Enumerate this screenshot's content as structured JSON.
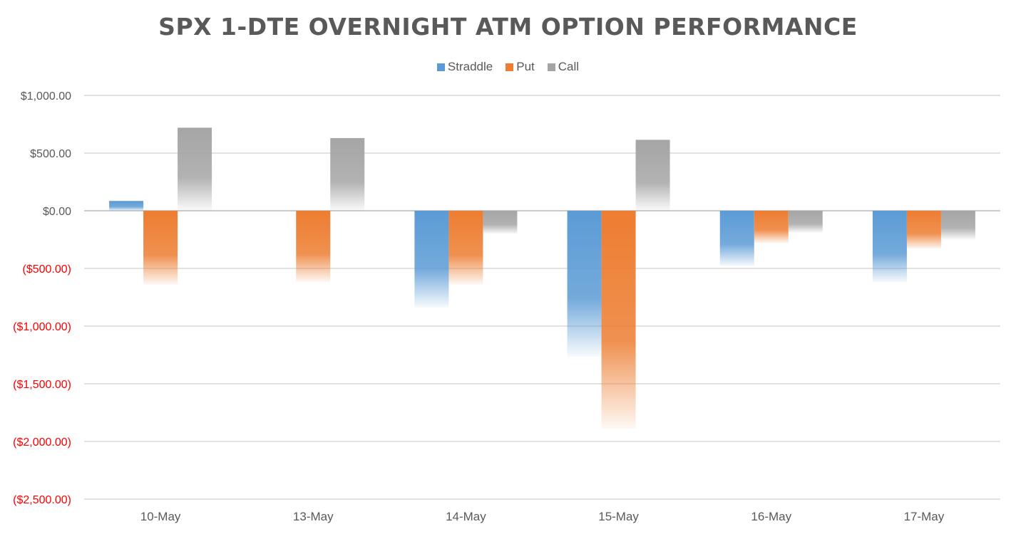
{
  "chart_data": {
    "type": "bar",
    "title": "SPX 1-DTE OVERNIGHT ATM OPTION PERFORMANCE",
    "categories": [
      "10-May",
      "13-May",
      "14-May",
      "15-May",
      "16-May",
      "17-May"
    ],
    "series": [
      {
        "name": "Straddle",
        "values": [
          85,
          0,
          -840,
          -1265,
          -480,
          -620
        ],
        "color": "#5b9bd5"
      },
      {
        "name": "Put",
        "values": [
          -640,
          -620,
          -640,
          -1890,
          -280,
          -330
        ],
        "color": "#ed7d31"
      },
      {
        "name": "Call",
        "values": [
          720,
          630,
          -200,
          615,
          -190,
          -250
        ],
        "color": "#a5a5a5"
      }
    ],
    "ylim": [
      -2500,
      1000
    ],
    "yticks": [
      1000,
      500,
      0,
      -500,
      -1000,
      -1500,
      -2000,
      -2500
    ],
    "ytick_labels": [
      "$1,000.00",
      "$500.00",
      "$0.00",
      "($500.00)",
      "($1,000.00)",
      "($1,500.00)",
      "($2,000.00)",
      "($2,500.00)"
    ],
    "negative_label_color": "#ff0000",
    "grid": true,
    "legend_position": "top"
  }
}
